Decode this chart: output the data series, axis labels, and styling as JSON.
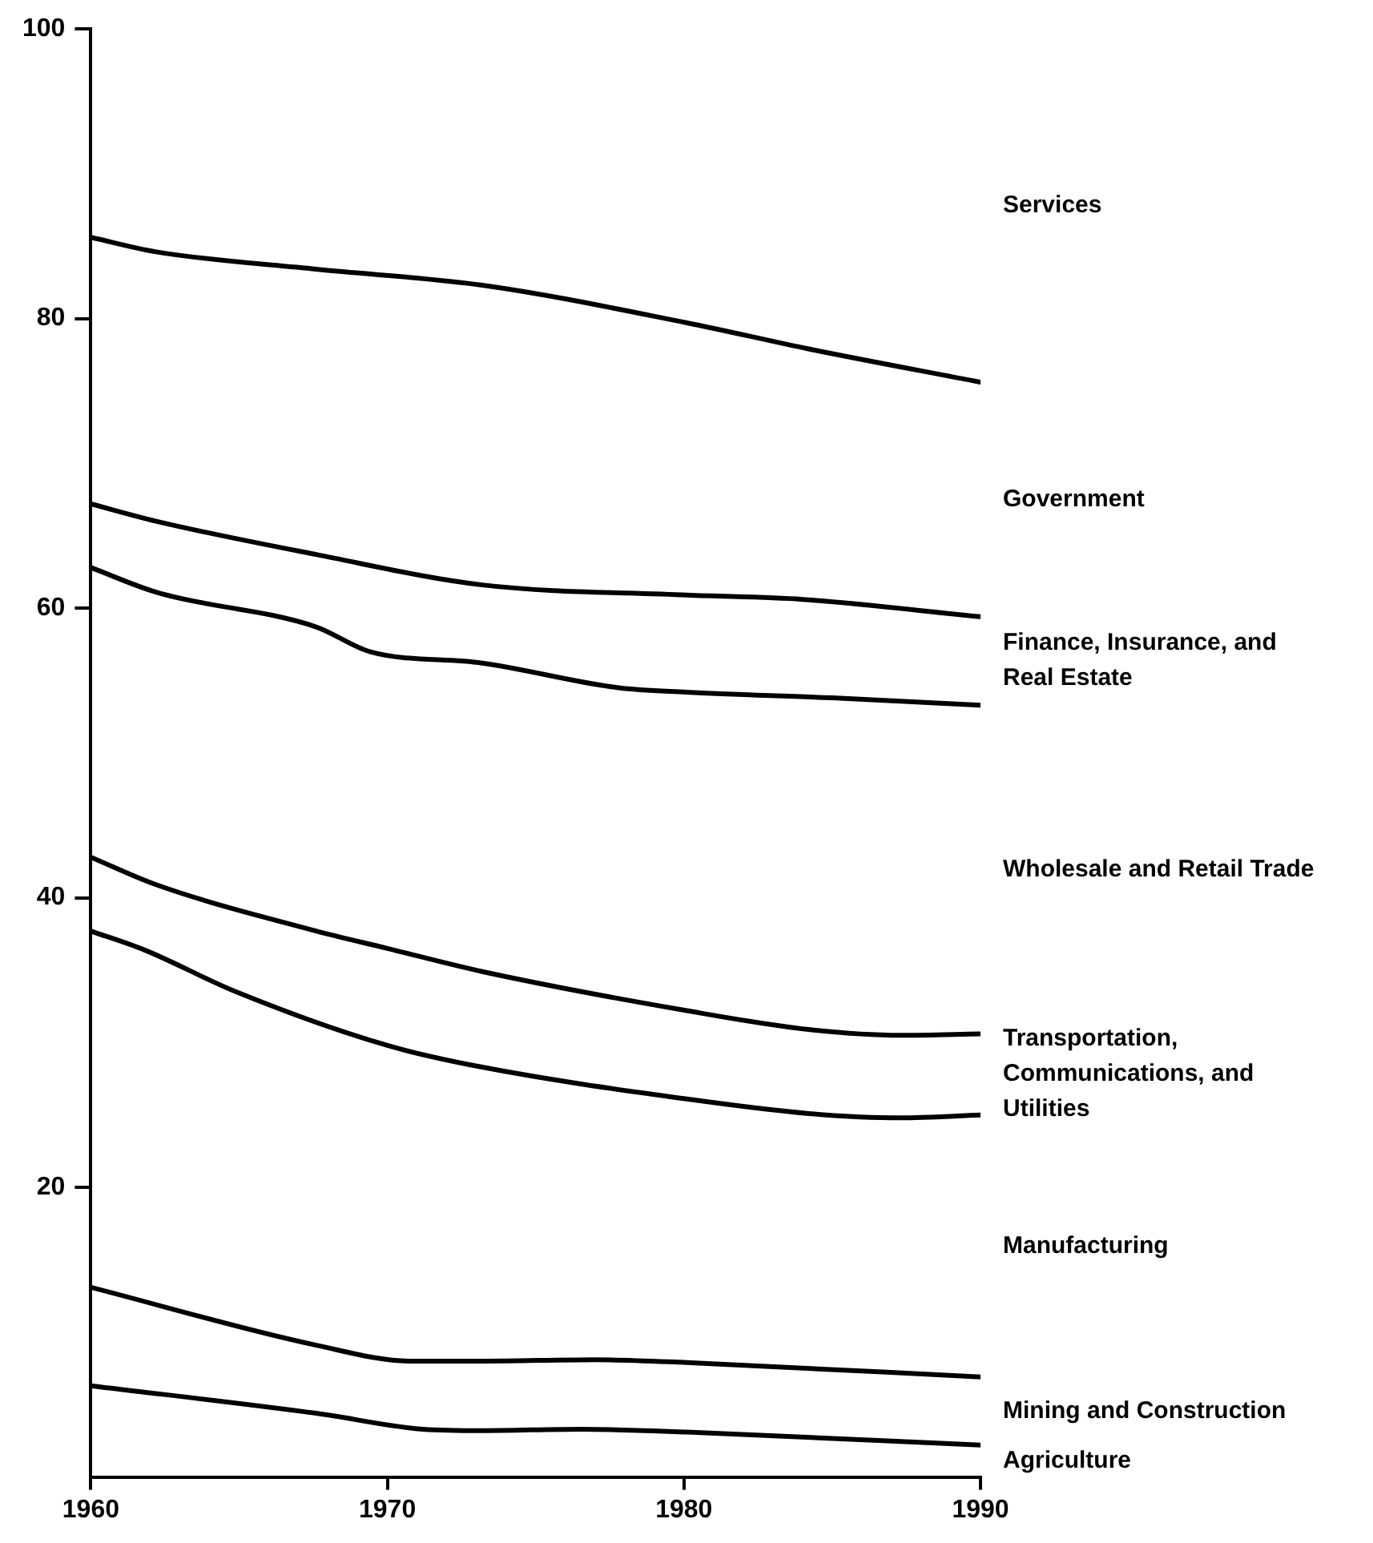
{
  "chart_data": {
    "type": "line",
    "xlim": [
      1960,
      1990
    ],
    "xticks": [
      1960,
      1970,
      1980,
      1990
    ],
    "ylim": [
      0,
      100
    ],
    "yticks": [
      20,
      40,
      60,
      80,
      100
    ],
    "marker": "none",
    "grid": false,
    "legend": false,
    "series": [
      {
        "color": "#000000",
        "x": [
          1960,
          1962.2,
          1967.6,
          1973.2,
          1980.1,
          1984.2,
          1990
        ],
        "values": [
          85.6,
          84.6,
          83.4,
          82.3,
          79.7,
          77.9,
          75.6
        ]
      },
      {
        "color": "#000000",
        "x": [
          1960,
          1962.2,
          1967.6,
          1973.2,
          1980.1,
          1984,
          1990
        ],
        "values": [
          67.2,
          66.0,
          63.7,
          61.6,
          60.9,
          60.6,
          59.4
        ]
      },
      {
        "color": "#000000",
        "x": [
          1960,
          1962.2,
          1967.6,
          1969.4,
          1973.2,
          1977.8,
          1980.1,
          1985,
          1990
        ],
        "values": [
          62.8,
          61.1,
          58.7,
          57.0,
          56.2,
          54.5,
          54.2,
          53.8,
          53.3
        ]
      },
      {
        "color": "#000000",
        "x": [
          1960,
          1962.2,
          1967.6,
          1970,
          1973.2,
          1980.1,
          1984.2,
          1987.3,
          1990
        ],
        "values": [
          42.8,
          40.9,
          37.7,
          36.5,
          34.9,
          32.2,
          30.9,
          30.5,
          30.6
        ]
      },
      {
        "color": "#000000",
        "x": [
          1960,
          1961.8,
          1964.9,
          1970,
          1973.2,
          1980.1,
          1984.2,
          1987.3,
          1990
        ],
        "values": [
          37.7,
          36.4,
          33.5,
          29.8,
          28.3,
          26.1,
          25.1,
          24.8,
          25.0
        ]
      },
      {
        "color": "#000000",
        "x": [
          1960,
          1967.6,
          1970.8,
          1973.2,
          1977,
          1980.1,
          1990
        ],
        "values": [
          13.1,
          9.1,
          8.0,
          8.0,
          8.1,
          7.9,
          6.9
        ]
      },
      {
        "color": "#000000",
        "x": [
          1960,
          1967.6,
          1971.2,
          1973.2,
          1976.5,
          1980.1,
          1990
        ],
        "values": [
          6.3,
          4.4,
          3.3,
          3.2,
          3.3,
          3.1,
          2.2
        ]
      }
    ],
    "annotations": [
      "Services",
      "Government",
      "Finance, Insurance, and Real Estate",
      "Wholesale and Retail Trade",
      "Transportation, Communications, and Utilities",
      "Manufacturing",
      "Mining and Construction",
      "Agriculture"
    ]
  }
}
